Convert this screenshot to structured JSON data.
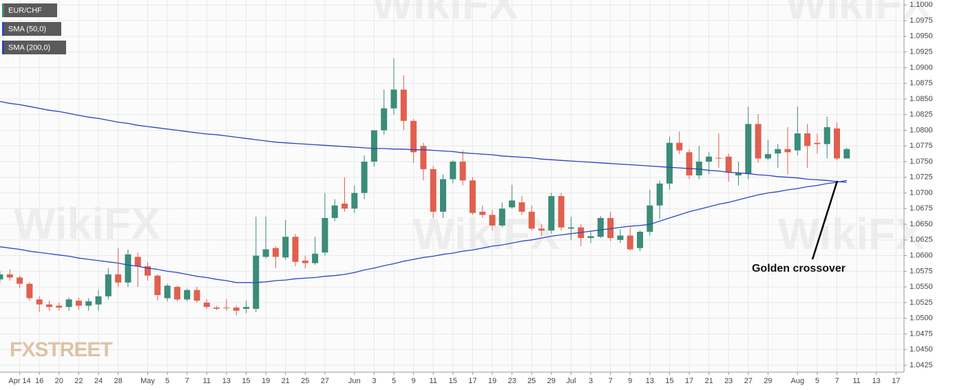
{
  "chart_data": {
    "type": "candlestick",
    "watermark": "WikiFX",
    "logo": "FXSTREET",
    "annotation": "Golden crossover",
    "categories": [
      null,
      null,
      "Apr 14",
      null,
      "16",
      null,
      "20",
      null,
      "22",
      null,
      "24",
      null,
      "28",
      null,
      null,
      "May",
      null,
      "5",
      null,
      "7",
      null,
      "11",
      null,
      "13",
      null,
      "15",
      null,
      "19",
      null,
      "21",
      null,
      "25",
      null,
      "27",
      null,
      null,
      "Jun",
      null,
      "3",
      null,
      "5",
      null,
      "9",
      null,
      "11",
      null,
      "15",
      null,
      "17",
      null,
      "19",
      null,
      "23",
      null,
      "25",
      null,
      "29",
      null,
      "Jul",
      null,
      "3",
      null,
      "7",
      null,
      "9",
      null,
      "13",
      null,
      "15",
      null,
      "17",
      null,
      "21",
      null,
      "23",
      null,
      "27",
      null,
      "29",
      null,
      null,
      "Aug",
      null,
      "5",
      null,
      "7",
      null,
      "11",
      null,
      "13",
      null,
      "17"
    ],
    "series": [
      {
        "name": "EUR/CHF",
        "up_color": "#3b8c78",
        "down_color": "#e0604e",
        "open": [
          1.0562,
          1.057,
          1.0565,
          1.0555,
          1.053,
          1.0522,
          1.052,
          1.0518,
          1.0528,
          1.052,
          1.0522,
          1.0535,
          1.057,
          1.0557,
          1.0598,
          1.0583,
          1.0568,
          1.0532,
          1.055,
          1.053,
          1.0545,
          1.0525,
          1.0517,
          1.0517,
          1.0517,
          1.0515,
          1.0515,
          1.0598,
          1.0612,
          1.0597,
          1.063,
          1.0592,
          1.0588,
          1.0605,
          1.066,
          1.0683,
          1.0675,
          1.07,
          1.075,
          1.08,
          1.0835,
          1.0865,
          1.0815,
          1.0775,
          1.0738,
          1.067,
          1.0722,
          1.075,
          1.072,
          1.067,
          1.0665,
          1.0648,
          1.0677,
          1.0685,
          1.067,
          1.0643,
          1.064,
          1.0695,
          1.0643,
          1.0645,
          1.0628,
          1.063,
          1.066,
          1.0625,
          1.0632,
          1.0612,
          1.0638,
          1.068,
          1.0715,
          1.078,
          1.0765,
          1.0728,
          1.075,
          1.0756,
          1.0758,
          1.0728,
          1.073,
          1.081,
          1.0755,
          1.0763,
          1.077,
          1.0768,
          1.0795,
          1.078,
          1.0778,
          1.0803,
          1.0755,
          null,
          null,
          null,
          null,
          null
        ],
        "high": [
          1.0575,
          1.0578,
          1.0568,
          1.0558,
          1.0535,
          1.0528,
          1.0525,
          1.0533,
          1.0533,
          1.0532,
          1.0545,
          1.058,
          1.0612,
          1.061,
          1.0605,
          1.059,
          1.057,
          1.0555,
          1.0552,
          1.0547,
          1.055,
          1.053,
          1.052,
          1.053,
          1.052,
          1.0528,
          1.0662,
          1.0662,
          1.0615,
          1.0657,
          1.0635,
          1.06,
          1.063,
          1.07,
          1.069,
          1.0725,
          1.0712,
          1.076,
          1.08,
          1.0865,
          1.0915,
          1.0888,
          1.0818,
          1.078,
          1.0743,
          1.073,
          1.0752,
          1.0768,
          1.0725,
          1.068,
          1.0673,
          1.0685,
          1.0713,
          1.0695,
          1.068,
          1.065,
          1.07,
          1.07,
          1.0662,
          1.065,
          1.064,
          1.0663,
          1.067,
          1.0642,
          1.0645,
          1.064,
          1.0705,
          1.072,
          1.079,
          1.0798,
          1.077,
          1.0775,
          1.0765,
          1.0795,
          1.0763,
          1.075,
          1.0838,
          1.0826,
          1.0785,
          1.0778,
          1.0805,
          1.0838,
          1.081,
          1.0795,
          1.0822,
          1.0813,
          1.0772,
          null,
          null,
          null,
          null,
          null
        ],
        "low": [
          1.0558,
          1.056,
          1.0548,
          1.0528,
          1.051,
          1.0512,
          1.0512,
          1.0512,
          1.0513,
          1.0512,
          1.0512,
          1.053,
          1.055,
          1.055,
          1.055,
          1.056,
          1.0528,
          1.0527,
          1.0527,
          1.0527,
          1.0525,
          1.0515,
          1.0513,
          1.0512,
          1.0505,
          1.0508,
          1.051,
          1.0595,
          1.058,
          1.0593,
          1.0583,
          1.058,
          1.0585,
          1.06,
          1.0655,
          1.067,
          1.0668,
          1.069,
          1.0742,
          1.0793,
          1.0825,
          1.08,
          1.0748,
          1.072,
          1.066,
          1.066,
          1.0715,
          1.0712,
          1.0665,
          1.066,
          1.064,
          1.0645,
          1.0675,
          1.0665,
          1.064,
          1.0632,
          1.0635,
          1.064,
          1.0625,
          1.0615,
          1.062,
          1.0628,
          1.0623,
          1.062,
          1.0608,
          1.0607,
          1.0632,
          1.0658,
          1.0705,
          1.0762,
          1.0722,
          1.0722,
          1.073,
          1.074,
          1.0718,
          1.0712,
          1.0722,
          1.0748,
          1.0752,
          1.074,
          1.073,
          1.076,
          1.074,
          1.0763,
          1.0755,
          1.0752,
          1.0755,
          null,
          null,
          null,
          null,
          null
        ],
        "close": [
          1.057,
          1.0565,
          1.0555,
          1.0532,
          1.0522,
          1.0518,
          1.0517,
          1.053,
          1.052,
          1.0527,
          1.0535,
          1.057,
          1.0557,
          1.0602,
          1.0583,
          1.0568,
          1.0537,
          1.0552,
          1.053,
          1.0545,
          1.0528,
          1.0518,
          1.0515,
          1.0516,
          1.0512,
          1.0518,
          1.06,
          1.061,
          1.0598,
          1.063,
          1.059,
          1.0588,
          1.0603,
          1.066,
          1.068,
          1.0675,
          1.07,
          1.075,
          1.08,
          1.0835,
          1.0865,
          1.0815,
          1.0765,
          1.0738,
          1.067,
          1.0722,
          1.075,
          1.072,
          1.0668,
          1.0665,
          1.0648,
          1.0675,
          1.0688,
          1.067,
          1.0643,
          1.064,
          1.0695,
          1.0645,
          1.0645,
          1.0628,
          1.0631,
          1.066,
          1.0628,
          1.0632,
          1.061,
          1.0638,
          1.068,
          1.0715,
          1.078,
          1.0768,
          1.0728,
          1.075,
          1.0758,
          1.0755,
          1.0733,
          1.0732,
          1.081,
          1.0755,
          1.0762,
          1.077,
          1.0765,
          1.0795,
          1.0775,
          1.0778,
          1.0805,
          1.0755,
          1.077,
          null,
          null,
          null,
          null,
          null
        ]
      },
      {
        "name": "SMA (50,0)",
        "color": "#2a48c8",
        "values": [
          1.0614,
          1.0612,
          1.061,
          1.0607,
          1.0605,
          1.0603,
          1.0601,
          1.0599,
          1.0596,
          1.0594,
          1.0592,
          1.059,
          1.0588,
          1.0585,
          1.0583,
          1.058,
          1.0578,
          1.0575,
          1.0573,
          1.057,
          1.0567,
          1.0565,
          1.0562,
          1.056,
          1.0557,
          1.0557,
          1.0557,
          1.0558,
          1.056,
          1.0561,
          1.0563,
          1.0564,
          1.0565,
          1.0567,
          1.0568,
          1.057,
          1.0573,
          1.0577,
          1.058,
          1.0584,
          1.0587,
          1.0591,
          1.0594,
          1.0597,
          1.0599,
          1.0602,
          1.0604,
          1.0607,
          1.0609,
          1.0612,
          1.0615,
          1.0617,
          1.062,
          1.0623,
          1.0625,
          1.0628,
          1.0631,
          1.0633,
          1.0635,
          1.0637,
          1.0639,
          1.0641,
          1.0643,
          1.0645,
          1.0647,
          1.0648,
          1.065,
          1.0655,
          1.066,
          1.0665,
          1.067,
          1.0674,
          1.0678,
          1.0682,
          1.0685,
          1.0689,
          1.0693,
          1.0697,
          1.07,
          1.0702,
          1.0705,
          1.0707,
          1.071,
          1.0712,
          1.0715,
          1.0717,
          1.072,
          null,
          null,
          null,
          null,
          null
        ]
      },
      {
        "name": "SMA (200,0)",
        "color": "#2f3fbf",
        "values": [
          1.0846,
          1.0843,
          1.0841,
          1.0838,
          1.0835,
          1.0832,
          1.083,
          1.0827,
          1.0824,
          1.0821,
          1.0819,
          1.0816,
          1.0813,
          1.0811,
          1.0808,
          1.0806,
          1.0804,
          1.0802,
          1.08,
          1.0798,
          1.0796,
          1.0794,
          1.0793,
          1.0791,
          1.0789,
          1.0787,
          1.0785,
          1.0783,
          1.0781,
          1.078,
          1.0779,
          1.0778,
          1.0777,
          1.0776,
          1.0775,
          1.0774,
          1.0773,
          1.0772,
          1.0771,
          1.0771,
          1.077,
          1.077,
          1.0769,
          1.0769,
          1.0768,
          1.0767,
          1.0766,
          1.0764,
          1.0763,
          1.0762,
          1.0761,
          1.0759,
          1.0758,
          1.0757,
          1.0756,
          1.0754,
          1.0753,
          1.0752,
          1.0751,
          1.075,
          1.0749,
          1.0748,
          1.0747,
          1.0746,
          1.0745,
          1.0744,
          1.0743,
          1.0742,
          1.0741,
          1.074,
          1.0739,
          1.0738,
          1.0736,
          1.0735,
          1.0733,
          1.0732,
          1.0731,
          1.0729,
          1.0728,
          1.0726,
          1.0725,
          1.0724,
          1.0722,
          1.0721,
          1.072,
          1.0718,
          1.0717,
          null,
          null,
          null,
          null,
          null
        ]
      }
    ],
    "ylim": [
      1.0414,
      1.1008
    ],
    "yticks": [
      {
        "value": 1.0425,
        "label": "1.0425"
      },
      {
        "value": 1.045,
        "label": "1.0450"
      },
      {
        "value": 1.0475,
        "label": "1.0475"
      },
      {
        "value": 1.05,
        "label": "1.0500"
      },
      {
        "value": 1.0525,
        "label": "1.0525"
      },
      {
        "value": 1.055,
        "label": "1.0550"
      },
      {
        "value": 1.0575,
        "label": "1.0575"
      },
      {
        "value": 1.06,
        "label": "1.0600"
      },
      {
        "value": 1.0625,
        "label": "1.0625"
      },
      {
        "value": 1.065,
        "label": "1.0650"
      },
      {
        "value": 1.0675,
        "label": "1.0675"
      },
      {
        "value": 1.07,
        "label": "1.0700"
      },
      {
        "value": 1.0725,
        "label": "1.0725"
      },
      {
        "value": 1.075,
        "label": "1.0750"
      },
      {
        "value": 1.0775,
        "label": "1.0775"
      },
      {
        "value": 1.08,
        "label": "1.0800"
      },
      {
        "value": 1.0825,
        "label": "1.0825"
      },
      {
        "value": 1.085,
        "label": "1.0850"
      },
      {
        "value": 1.0875,
        "label": "1.0875"
      },
      {
        "value": 1.09,
        "label": "1.0900"
      },
      {
        "value": 1.0925,
        "label": "1.0925"
      },
      {
        "value": 1.095,
        "label": "1.0950"
      },
      {
        "value": 1.0975,
        "label": "1.0975"
      },
      {
        "value": 1.1,
        "label": "1.1000"
      }
    ],
    "grid": true
  }
}
